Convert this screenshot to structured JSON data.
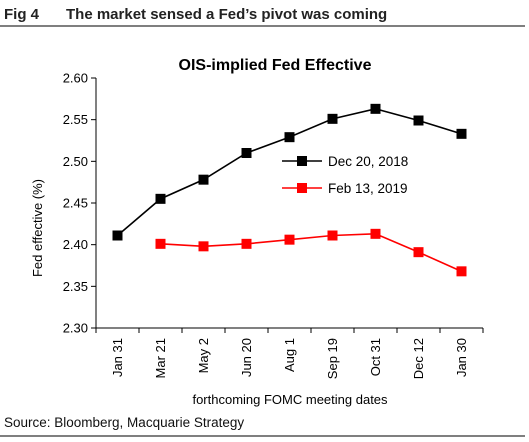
{
  "figure": {
    "number": "Fig 4",
    "headline": "The market sensed a Fed’s pivot was coming",
    "source": "Source: Bloomberg, Macquarie Strategy"
  },
  "chart_data": {
    "type": "line",
    "title": "OIS-implied Fed Effective",
    "xlabel": "forthcoming FOMC meeting dates",
    "ylabel": "Fed effective (%)",
    "categories": [
      "Jan 31",
      "Mar 21",
      "May 2",
      "Jun 20",
      "Aug 1",
      "Sep 19",
      "Oct 31",
      "Dec 12",
      "Jan 30"
    ],
    "ylim": [
      2.3,
      2.6
    ],
    "yticks": [
      "2.30",
      "2.35",
      "2.40",
      "2.45",
      "2.50",
      "2.55",
      "2.60"
    ],
    "grid": false,
    "legend_position": "right-center",
    "series": [
      {
        "name": "Dec 20, 2018",
        "color": "#000000",
        "values": [
          2.411,
          2.455,
          2.478,
          2.51,
          2.529,
          2.551,
          2.563,
          2.549,
          2.533
        ]
      },
      {
        "name": "Feb 13, 2019",
        "color": "#ff0000",
        "values": [
          null,
          2.401,
          2.398,
          2.401,
          2.406,
          2.411,
          2.413,
          2.391,
          2.368
        ]
      }
    ]
  }
}
